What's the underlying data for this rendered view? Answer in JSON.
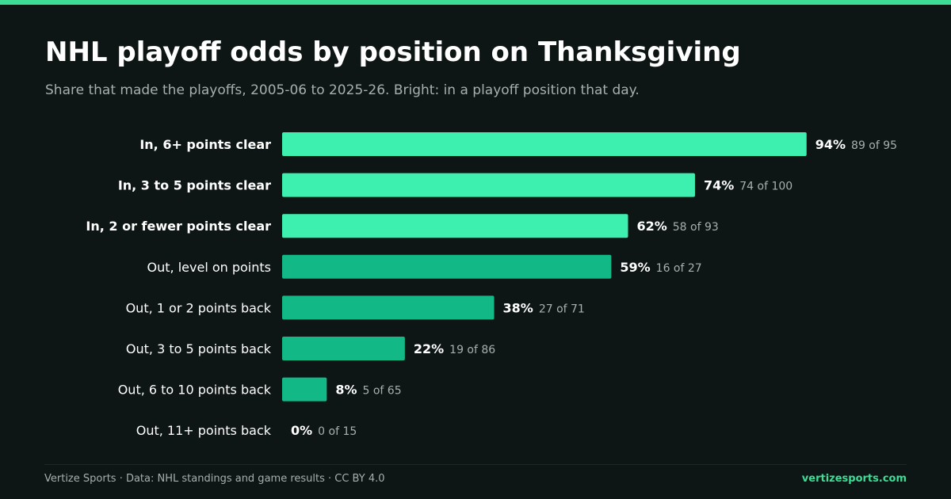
{
  "header": {
    "title": "NHL playoff odds by position on Thanksgiving",
    "subtitle": "Share that made the playoffs, 2005-06 to 2025-26. Bright: in a playoff position that day."
  },
  "footer": {
    "credit": "Vertize Sports · Data: NHL standings and game results · CC BY 4.0",
    "site": "vertizesports.com"
  },
  "colors": {
    "background": "#0d1614",
    "accent": "#3ddc97",
    "bar_in": "#3ef0b0",
    "bar_out": "#12b886",
    "label": "#ffffff",
    "muted": "#a7b0ad"
  },
  "chart_data": {
    "type": "bar",
    "orientation": "horizontal",
    "title": "NHL playoff odds by position on Thanksgiving",
    "subtitle": "Share that made the playoffs, 2005-06 to 2025-26. Bright: in a playoff position that day.",
    "xlim": [
      0,
      100
    ],
    "grid": false,
    "categories": [
      "In, 6+ points clear",
      "In, 3 to 5 points clear",
      "In, 2 or fewer points clear",
      "Out, level on points",
      "Out, 1 or 2 points back",
      "Out, 3 to 5 points back",
      "Out, 6 to 10 points back",
      "Out, 11+ points back"
    ],
    "values": [
      94,
      74,
      62,
      59,
      38,
      22,
      8,
      0
    ],
    "value_labels": [
      "94%",
      "74%",
      "62%",
      "59%",
      "38%",
      "22%",
      "8%",
      "0%"
    ],
    "counts": [
      "89 of 95",
      "74 of 100",
      "58 of 93",
      "16 of 27",
      "27 of 71",
      "19 of 86",
      "5 of 65",
      "0 of 15"
    ],
    "in_playoff_position": [
      true,
      true,
      true,
      false,
      false,
      false,
      false,
      false
    ]
  }
}
